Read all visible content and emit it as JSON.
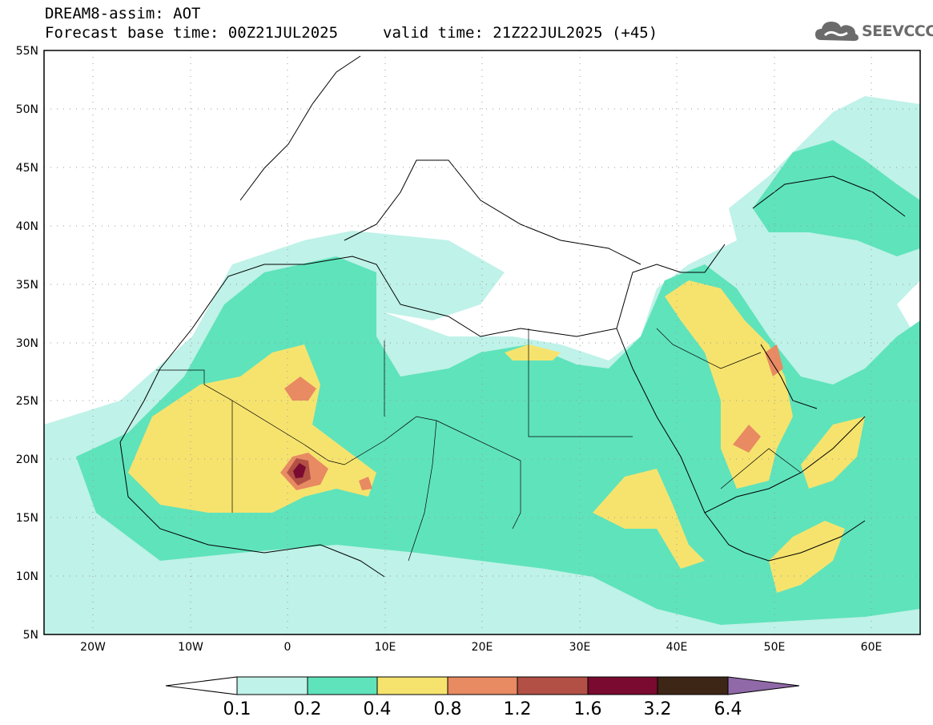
{
  "header": {
    "title": "DREAM8-assim: AOT",
    "forecast_base": "Forecast base time: 00Z21JUL2025",
    "valid_time": "valid time: 21Z22JUL2025 (+45)"
  },
  "logo": {
    "text": "SEEVCCC",
    "icon": "cloud-icon"
  },
  "map": {
    "lon_range": [
      -25,
      65
    ],
    "lat_range": [
      5,
      55
    ],
    "lon_ticks": [
      "20W",
      "10W",
      "0",
      "10E",
      "20E",
      "30E",
      "40E",
      "50E",
      "60E"
    ],
    "lat_ticks": [
      "55N",
      "50N",
      "45N",
      "40N",
      "35N",
      "30N",
      "25N",
      "20N",
      "15N",
      "10N",
      "5N"
    ],
    "grid": true
  },
  "colorbar": {
    "labels": [
      "0.1",
      "0.2",
      "0.4",
      "0.8",
      "1.2",
      "1.6",
      "3.2",
      "6.4"
    ],
    "colors": [
      "#ffffff",
      "#bff2e8",
      "#5fe3bb",
      "#f6e36e",
      "#e88a62",
      "#b25045",
      "#7a0a30",
      "#3d2616",
      "#8f69a8"
    ]
  }
}
